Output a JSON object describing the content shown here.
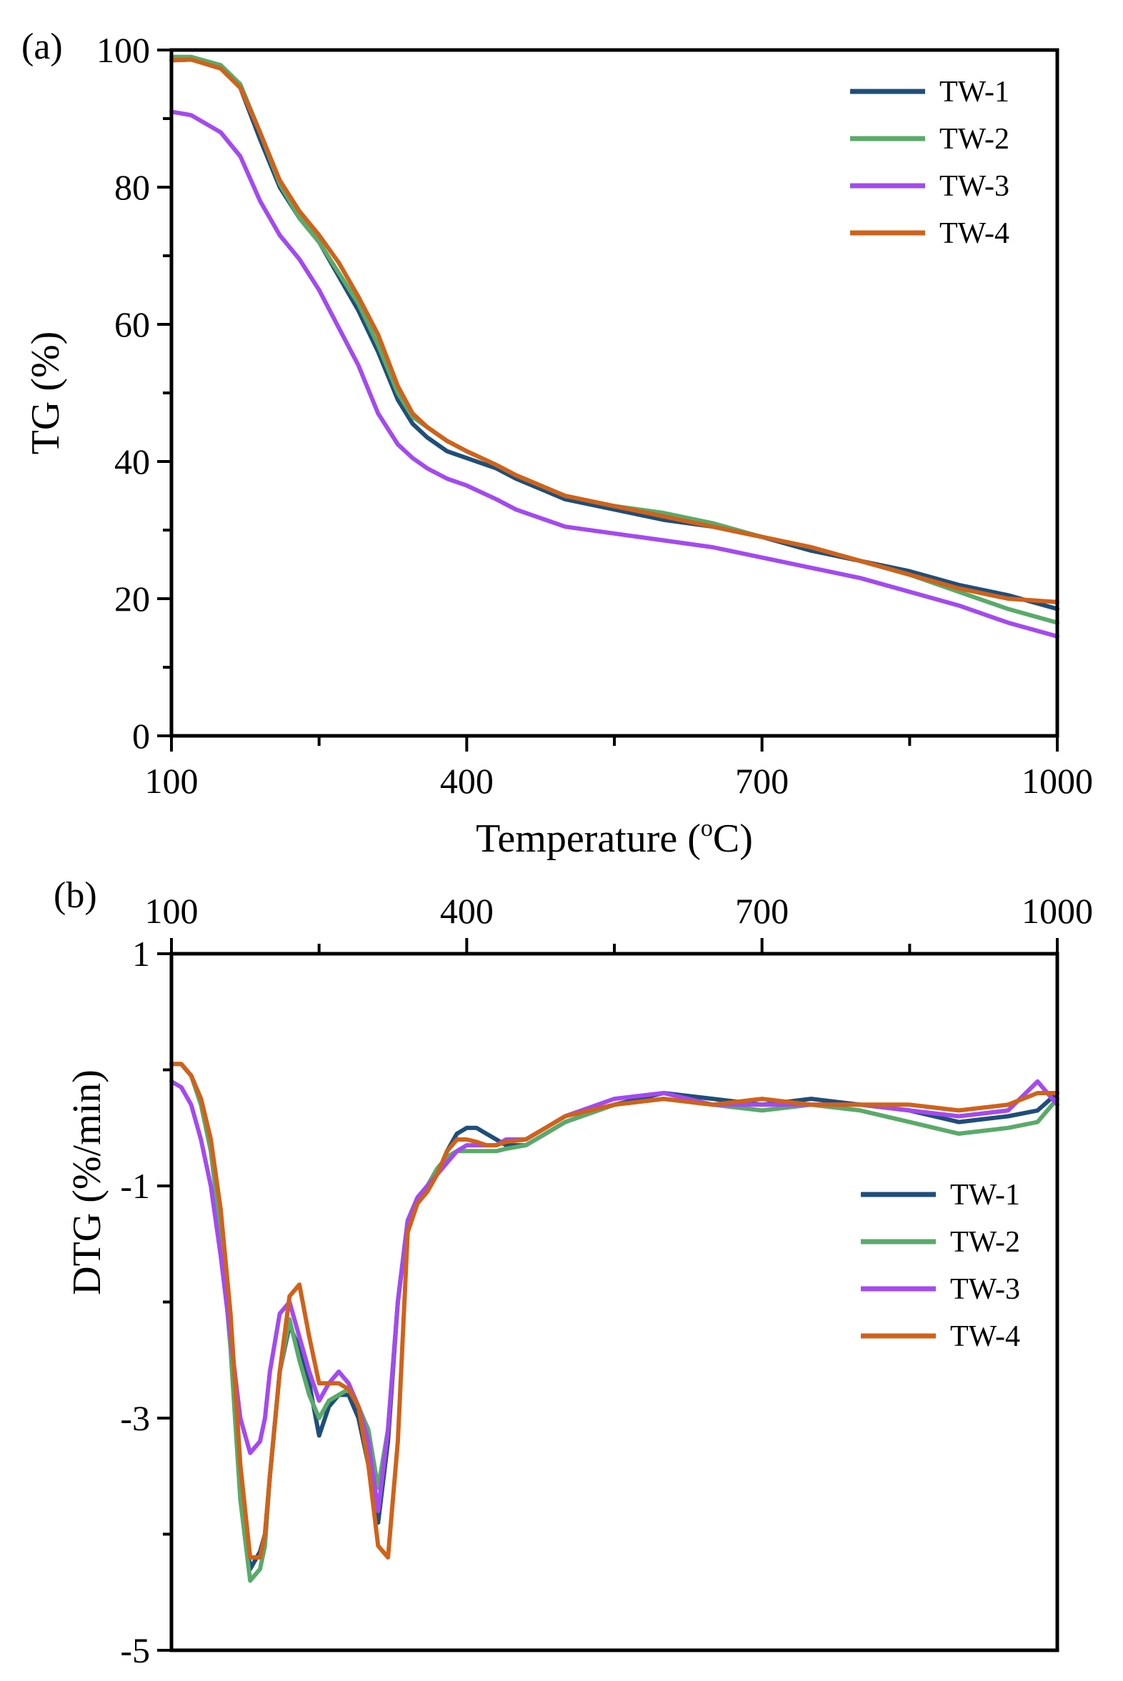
{
  "chart_data": [
    {
      "panel_label": "(a)",
      "type": "line",
      "title": "",
      "xlabel": "Temperature (°C)",
      "xlabel_main": "Temperature (",
      "xlabel_sup": "o",
      "xlabel_end": "C)",
      "ylabel": "TG (%)",
      "xlim": [
        100,
        1000
      ],
      "ylim": [
        0,
        100
      ],
      "xticks": [
        100,
        400,
        700,
        1000
      ],
      "yticks": [
        0,
        20,
        40,
        60,
        80,
        100
      ],
      "legend": "top-right",
      "grid": false,
      "series": [
        {
          "name": "TW-1",
          "color": "#1f4e79",
          "x": [
            100,
            120,
            150,
            170,
            190,
            210,
            230,
            250,
            270,
            290,
            310,
            330,
            345,
            360,
            380,
            400,
            430,
            450,
            500,
            550,
            600,
            650,
            700,
            750,
            800,
            850,
            900,
            950,
            1000
          ],
          "y": [
            98.5,
            98.6,
            97.5,
            94.5,
            87,
            80,
            75.5,
            72,
            67,
            62,
            56,
            49,
            45.5,
            43.5,
            41.5,
            40.5,
            39,
            37.5,
            34.5,
            33,
            31.5,
            30.5,
            29,
            27,
            25.5,
            24,
            22,
            20.5,
            18.5
          ]
        },
        {
          "name": "TW-2",
          "color": "#5aaa6a",
          "x": [
            100,
            120,
            150,
            170,
            190,
            210,
            230,
            250,
            270,
            290,
            310,
            330,
            345,
            360,
            380,
            400,
            430,
            450,
            500,
            550,
            600,
            650,
            700,
            750,
            800,
            850,
            900,
            950,
            1000
          ],
          "y": [
            99,
            99,
            97.8,
            95,
            88,
            80.5,
            75.5,
            72,
            67.5,
            63,
            57,
            50,
            46.5,
            45,
            43,
            41.5,
            39.5,
            38,
            35,
            33.5,
            32.5,
            31,
            29,
            27.5,
            25.5,
            23.5,
            21,
            18.5,
            16.5
          ]
        },
        {
          "name": "TW-3",
          "color": "#a34af0",
          "x": [
            100,
            120,
            150,
            170,
            190,
            210,
            230,
            250,
            270,
            290,
            310,
            330,
            345,
            360,
            380,
            400,
            430,
            450,
            500,
            550,
            600,
            650,
            700,
            750,
            800,
            850,
            900,
            950,
            1000
          ],
          "y": [
            91,
            90.5,
            88,
            84.5,
            78,
            73,
            69.5,
            65,
            59.5,
            54,
            47,
            42.5,
            40.5,
            39,
            37.5,
            36.5,
            34.5,
            33,
            30.5,
            29.5,
            28.5,
            27.5,
            26,
            24.5,
            23,
            21,
            19,
            16.5,
            14.5
          ]
        },
        {
          "name": "TW-4",
          "color": "#d0621a",
          "x": [
            100,
            120,
            150,
            170,
            190,
            210,
            230,
            250,
            270,
            290,
            310,
            330,
            345,
            360,
            380,
            400,
            430,
            450,
            500,
            550,
            600,
            650,
            700,
            750,
            800,
            850,
            900,
            950,
            1000
          ],
          "y": [
            98.5,
            98.6,
            97.3,
            94.5,
            88,
            81,
            76.5,
            73,
            69,
            64,
            58.5,
            51,
            47,
            45,
            43,
            41.5,
            39.5,
            38,
            35,
            33.5,
            32,
            30.5,
            29,
            27.5,
            25.5,
            23.5,
            21.5,
            20,
            19.5
          ]
        }
      ]
    },
    {
      "panel_label": "(b)",
      "type": "line",
      "title": "",
      "xlabel": "",
      "ylabel": "DTG (%/min)",
      "xlim": [
        100,
        1000
      ],
      "ylim": [
        -5,
        1
      ],
      "xticks": [
        100,
        400,
        700,
        1000
      ],
      "yticks": [
        1,
        -1,
        -3,
        -5
      ],
      "xaxis_position": "top",
      "legend": "center-right",
      "grid": false,
      "series": [
        {
          "name": "TW-1",
          "color": "#1f4e79",
          "x": [
            100,
            110,
            120,
            130,
            140,
            150,
            160,
            170,
            180,
            190,
            195,
            200,
            210,
            220,
            230,
            240,
            250,
            260,
            270,
            280,
            290,
            300,
            310,
            320,
            330,
            340,
            350,
            360,
            370,
            380,
            390,
            400,
            410,
            420,
            430,
            440,
            460,
            480,
            500,
            550,
            600,
            650,
            700,
            750,
            800,
            850,
            900,
            950,
            980,
            1000
          ],
          "y": [
            0.05,
            0.05,
            -0.05,
            -0.25,
            -0.6,
            -1.3,
            -2.3,
            -3.6,
            -4.3,
            -4.15,
            -4.0,
            -3.5,
            -2.6,
            -2.2,
            -2.4,
            -2.7,
            -3.15,
            -2.9,
            -2.8,
            -2.8,
            -3.0,
            -3.4,
            -3.9,
            -3.2,
            -2.0,
            -1.3,
            -1.1,
            -1.0,
            -0.9,
            -0.7,
            -0.55,
            -0.5,
            -0.5,
            -0.55,
            -0.6,
            -0.65,
            -0.65,
            -0.55,
            -0.45,
            -0.3,
            -0.2,
            -0.25,
            -0.3,
            -0.25,
            -0.3,
            -0.35,
            -0.45,
            -0.4,
            -0.35,
            -0.2
          ]
        },
        {
          "name": "TW-2",
          "color": "#5aaa6a",
          "x": [
            100,
            110,
            120,
            130,
            140,
            150,
            160,
            170,
            180,
            190,
            195,
            200,
            210,
            220,
            230,
            240,
            250,
            260,
            270,
            280,
            290,
            300,
            310,
            320,
            330,
            340,
            350,
            360,
            370,
            380,
            390,
            400,
            410,
            420,
            430,
            440,
            460,
            480,
            500,
            550,
            600,
            650,
            700,
            750,
            800,
            850,
            900,
            950,
            980,
            1000
          ],
          "y": [
            0.05,
            0.05,
            -0.05,
            -0.3,
            -0.7,
            -1.4,
            -2.4,
            -3.7,
            -4.4,
            -4.3,
            -4.1,
            -3.5,
            -2.6,
            -2.15,
            -2.5,
            -2.8,
            -3.0,
            -2.85,
            -2.8,
            -2.75,
            -2.9,
            -3.1,
            -3.6,
            -3.1,
            -2.0,
            -1.3,
            -1.1,
            -1.0,
            -0.85,
            -0.75,
            -0.7,
            -0.7,
            -0.7,
            -0.7,
            -0.7,
            -0.68,
            -0.65,
            -0.55,
            -0.45,
            -0.3,
            -0.25,
            -0.3,
            -0.35,
            -0.3,
            -0.35,
            -0.45,
            -0.55,
            -0.5,
            -0.45,
            -0.25
          ]
        },
        {
          "name": "TW-3",
          "color": "#a34af0",
          "x": [
            100,
            110,
            120,
            130,
            140,
            150,
            160,
            170,
            180,
            190,
            195,
            200,
            210,
            220,
            230,
            240,
            250,
            260,
            270,
            280,
            290,
            300,
            310,
            320,
            330,
            340,
            350,
            360,
            370,
            380,
            390,
            400,
            410,
            420,
            430,
            440,
            460,
            480,
            500,
            550,
            600,
            650,
            700,
            750,
            800,
            850,
            900,
            950,
            980,
            1000
          ],
          "y": [
            -0.1,
            -0.15,
            -0.3,
            -0.6,
            -1.0,
            -1.6,
            -2.3,
            -3.0,
            -3.3,
            -3.2,
            -3.0,
            -2.6,
            -2.1,
            -2.0,
            -2.3,
            -2.6,
            -2.85,
            -2.7,
            -2.6,
            -2.7,
            -2.9,
            -3.2,
            -3.8,
            -3.1,
            -2.0,
            -1.3,
            -1.1,
            -1.0,
            -0.9,
            -0.8,
            -0.7,
            -0.65,
            -0.65,
            -0.65,
            -0.65,
            -0.6,
            -0.6,
            -0.5,
            -0.4,
            -0.25,
            -0.2,
            -0.3,
            -0.3,
            -0.3,
            -0.3,
            -0.35,
            -0.4,
            -0.35,
            -0.1,
            -0.3
          ]
        },
        {
          "name": "TW-4",
          "color": "#d0621a",
          "x": [
            100,
            110,
            120,
            130,
            140,
            150,
            160,
            170,
            180,
            190,
            195,
            200,
            210,
            220,
            230,
            240,
            250,
            260,
            270,
            280,
            290,
            300,
            310,
            320,
            330,
            340,
            350,
            360,
            370,
            380,
            390,
            400,
            410,
            420,
            430,
            440,
            460,
            480,
            500,
            550,
            600,
            650,
            700,
            750,
            800,
            850,
            900,
            950,
            980,
            1000
          ],
          "y": [
            0.05,
            0.05,
            -0.05,
            -0.25,
            -0.6,
            -1.2,
            -2.1,
            -3.4,
            -4.2,
            -4.2,
            -4.0,
            -3.5,
            -2.6,
            -1.95,
            -1.85,
            -2.3,
            -2.7,
            -2.7,
            -2.7,
            -2.75,
            -2.9,
            -3.4,
            -4.1,
            -4.2,
            -3.2,
            -1.4,
            -1.15,
            -1.05,
            -0.9,
            -0.7,
            -0.6,
            -0.6,
            -0.62,
            -0.65,
            -0.65,
            -0.62,
            -0.6,
            -0.5,
            -0.4,
            -0.3,
            -0.25,
            -0.3,
            -0.25,
            -0.3,
            -0.3,
            -0.3,
            -0.35,
            -0.3,
            -0.2,
            -0.2
          ]
        }
      ]
    }
  ]
}
